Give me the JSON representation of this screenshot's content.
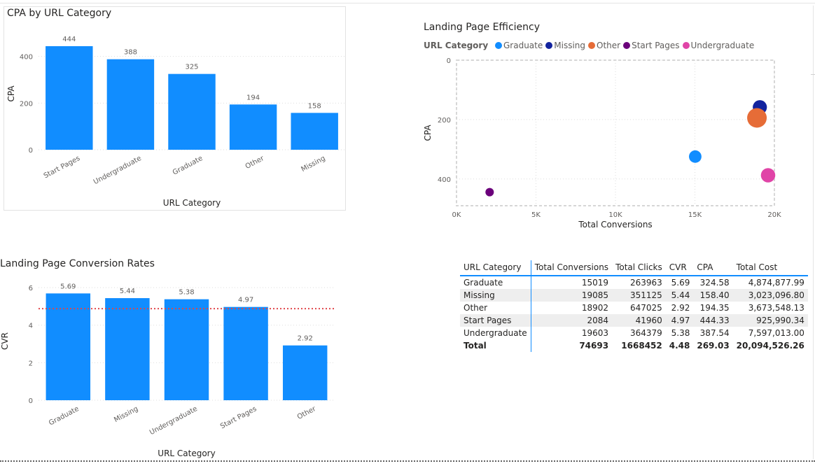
{
  "colors": {
    "bar": "#118dff",
    "avg_line": "#e0464a",
    "grid": "#dddddd",
    "text": "#252423",
    "muted": "#605e5c"
  },
  "chart_data": [
    {
      "id": "cpa_by_category",
      "type": "bar",
      "title": "CPA by URL Category",
      "xlabel": "URL Category",
      "ylabel": "CPA",
      "categories": [
        "Start Pages",
        "Undergraduate",
        "Graduate",
        "Other",
        "Missing"
      ],
      "values": [
        444,
        388,
        325,
        194,
        158
      ],
      "value_labels": [
        "444",
        "388",
        "325",
        "194",
        "158"
      ],
      "ylim": [
        0,
        480
      ],
      "yticks": [
        0,
        200,
        400
      ],
      "ytick_labels": [
        "0",
        "200",
        "400"
      ]
    },
    {
      "id": "landing_efficiency",
      "type": "scatter",
      "title": "Landing Page Efficiency",
      "xlabel": "Total Conversions",
      "ylabel": "CPA",
      "legend_title": "URL Category",
      "legend_position": "top",
      "y_inverted": true,
      "xlim": [
        0,
        20000
      ],
      "ylim": [
        0,
        490
      ],
      "xticks": [
        0,
        5000,
        10000,
        15000,
        20000
      ],
      "xtick_labels": [
        "0K",
        "5K",
        "10K",
        "15K",
        "20K"
      ],
      "yticks": [
        0,
        200,
        400
      ],
      "ytick_labels": [
        "0",
        "200",
        "400"
      ],
      "series": [
        {
          "name": "Graduate",
          "color": "#118dff",
          "x": 15019,
          "y": 324.58,
          "size": 263963
        },
        {
          "name": "Missing",
          "color": "#12239e",
          "x": 19085,
          "y": 158.4,
          "size": 351125
        },
        {
          "name": "Other",
          "color": "#e66c37",
          "x": 18902,
          "y": 194.35,
          "size": 647025
        },
        {
          "name": "Start Pages",
          "color": "#6b007b",
          "x": 2084,
          "y": 444.33,
          "size": 41960
        },
        {
          "name": "Undergraduate",
          "color": "#e044a7",
          "x": 19603,
          "y": 387.54,
          "size": 364379
        }
      ]
    },
    {
      "id": "conversion_rates",
      "type": "bar",
      "title": "Landing Page Conversion Rates",
      "xlabel": "URL Category",
      "ylabel": "CVR",
      "categories": [
        "Graduate",
        "Missing",
        "Undergraduate",
        "Start Pages",
        "Other"
      ],
      "values": [
        5.69,
        5.44,
        5.38,
        4.97,
        2.92
      ],
      "value_labels": [
        "5.69",
        "5.44",
        "5.38",
        "4.97",
        "2.92"
      ],
      "ylim": [
        0,
        6.3
      ],
      "yticks": [
        0,
        2,
        4,
        6
      ],
      "ytick_labels": [
        "0",
        "2",
        "4",
        "6"
      ],
      "average_line": 4.88
    },
    {
      "id": "summary_table",
      "type": "table",
      "columns": [
        "URL Category",
        "Total Conversions",
        "Total Clicks",
        "CVR",
        "CPA",
        "Total Cost"
      ],
      "rows": [
        [
          "Graduate",
          "15019",
          "263963",
          "5.69",
          "324.58",
          "4,874,877.99"
        ],
        [
          "Missing",
          "19085",
          "351125",
          "5.44",
          "158.40",
          "3,023,096.80"
        ],
        [
          "Other",
          "18902",
          "647025",
          "2.92",
          "194.35",
          "3,673,548.13"
        ],
        [
          "Start Pages",
          "2084",
          "41960",
          "4.97",
          "444.33",
          "925,990.34"
        ],
        [
          "Undergraduate",
          "19603",
          "364379",
          "5.38",
          "387.54",
          "7,597,013.00"
        ]
      ],
      "total": [
        "Total",
        "74693",
        "1668452",
        "4.48",
        "269.03",
        "20,094,526.26"
      ]
    }
  ]
}
